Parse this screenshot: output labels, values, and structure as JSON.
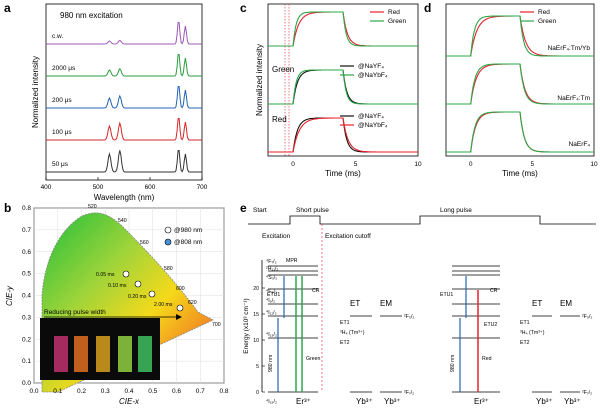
{
  "panels": {
    "a": {
      "label": "a",
      "legend": "980 nm excitation",
      "traces": [
        {
          "label": "c.w.",
          "color": "#9b59b6"
        },
        {
          "label": "2000 μs",
          "color": "#2a9d3e"
        },
        {
          "label": "200 μs",
          "color": "#2464b4"
        },
        {
          "label": "100 μs",
          "color": "#d62728"
        },
        {
          "label": "50 μs",
          "color": "#333333"
        }
      ],
      "xlabel": "Wavelength (nm)",
      "ylabel": "Normalized intensity",
      "xticks": [
        "400",
        "500",
        "600",
        "700"
      ]
    },
    "b": {
      "label": "b",
      "xlabel": "CIE-x",
      "ylabel": "CIE-y",
      "xticks": [
        "0.0",
        "0.1",
        "0.2",
        "0.3",
        "0.4",
        "0.5",
        "0.6",
        "0.7",
        "0.8"
      ],
      "yticks": [
        "0.0",
        "0.1",
        "0.2",
        "0.3",
        "0.4",
        "0.5",
        "0.6",
        "0.7",
        "0.8"
      ],
      "wavelengths": [
        "520",
        "540",
        "560",
        "580",
        "600",
        "620",
        "700"
      ],
      "legend": [
        {
          "label": "@980 nm",
          "color": "#ffffff"
        },
        {
          "label": "@808 nm",
          "color": "#4a90d9"
        }
      ],
      "points": [
        "0.05 ms",
        "0.10 ms",
        "0.20 ms",
        "2.00 ms"
      ],
      "arrow_label": "Reducing pulse width"
    },
    "c": {
      "label": "c",
      "groups": [
        {
          "title": "",
          "series": [
            "Red",
            "Green"
          ]
        },
        {
          "title": "Green",
          "series": [
            "@NaYF₄",
            "@NaYbF₄"
          ]
        },
        {
          "title": "Red",
          "series": [
            "@NaYF₄",
            "@NaYbF₄"
          ]
        }
      ],
      "xlabel": "Time (ms)",
      "ylabel": "Normalized intensity",
      "xticks": [
        "0",
        "5",
        "10"
      ]
    },
    "d": {
      "label": "d",
      "legend": [
        "Red",
        "Green"
      ],
      "samples": [
        "NaErF₄:Tm/Yb",
        "NaErF₄:Tm",
        "NaErF₄"
      ],
      "xlabel": "Time (ms)",
      "xticks": [
        "0",
        "5",
        "10"
      ]
    },
    "e": {
      "label": "e",
      "top_labels": {
        "start": "Start",
        "short": "Short pulse",
        "long": "Long pulse",
        "excitation": "Excitation",
        "cutoff": "Excitation cutoff"
      },
      "ylabel": "Energy (x10³ cm⁻¹)",
      "yticks": [
        "0",
        "5",
        "10",
        "15",
        "20"
      ],
      "levels": [
        "⁴F₇/₂",
        "²H₁₁/₂",
        "⁴S₃/₂",
        "⁴F₉/₂",
        "⁴I₉/₂",
        "⁴I₁₁/₂",
        "⁴I₁₃/₂",
        "⁴I₁₅/₂"
      ],
      "process_labels": [
        "MPR",
        "ETU1",
        "CR",
        "ET",
        "EM",
        "ET1",
        "ET2",
        "³H₄ (Tm³⁺)",
        "ETU2",
        "Green",
        "Red",
        "980 nm"
      ],
      "ions": [
        "Er³⁺",
        "Yb³⁺",
        "Yb³⁺"
      ],
      "yb_levels": [
        "²F₅/₂",
        "²F₇/₂"
      ]
    }
  },
  "colors": {
    "red": "#e8202a",
    "green": "#2aa84a",
    "black": "#111111",
    "blue": "#2464b4",
    "purple": "#9b59b6"
  }
}
